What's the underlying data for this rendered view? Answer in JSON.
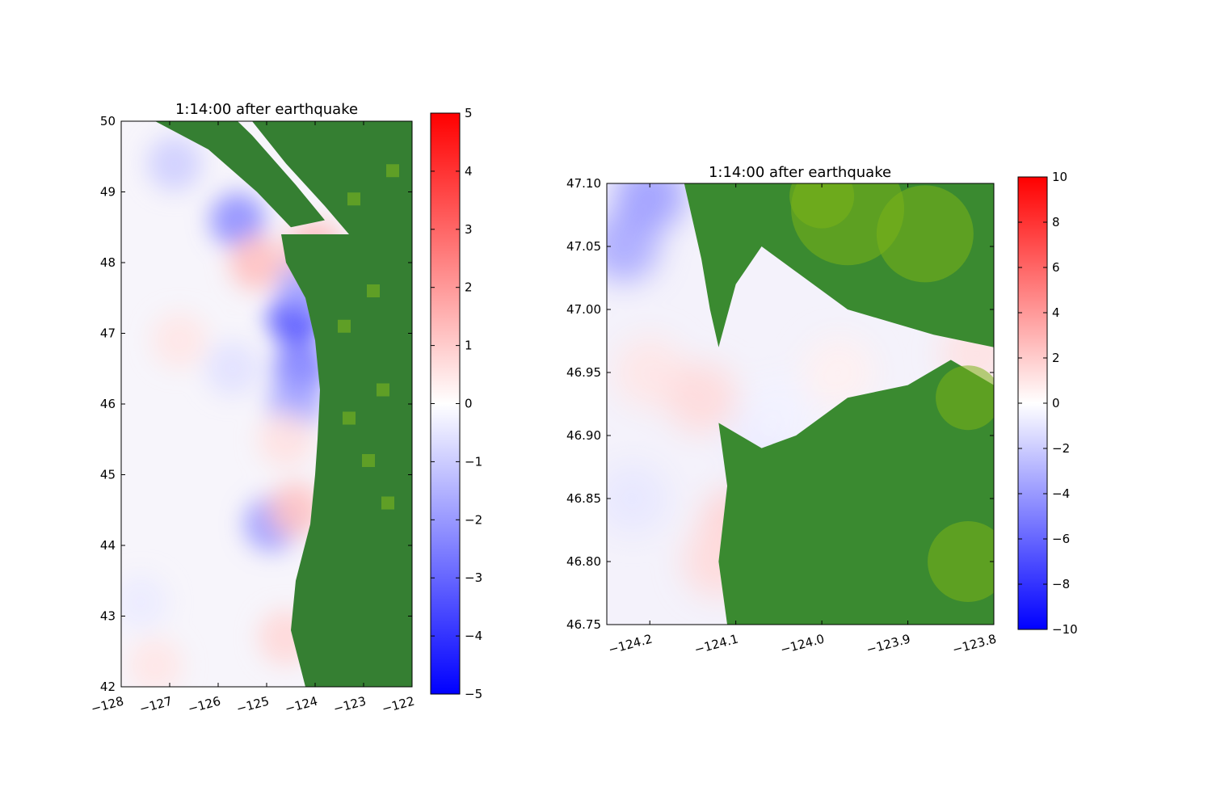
{
  "chart_data": [
    {
      "type": "heatmap",
      "title": "1:14:00 after earthquake",
      "xlim": [
        -128,
        -122
      ],
      "ylim": [
        42,
        50
      ],
      "x_ticks": [
        -128,
        -127,
        -126,
        -125,
        -124,
        -123,
        -122
      ],
      "x_tick_labels": [
        "−128",
        "−127",
        "−126",
        "−125",
        "−124",
        "−123",
        "−122"
      ],
      "y_ticks": [
        42,
        43,
        44,
        45,
        46,
        47,
        48,
        49,
        50
      ],
      "y_tick_labels": [
        "42",
        "43",
        "44",
        "45",
        "46",
        "47",
        "48",
        "49",
        "50"
      ],
      "colorbar": {
        "range": [
          -5,
          5
        ],
        "ticks": [
          -5,
          -4,
          -3,
          -2,
          -1,
          0,
          1,
          2,
          3,
          4,
          5
        ],
        "tick_labels": [
          "−5",
          "−4",
          "−3",
          "−2",
          "−1",
          "0",
          "1",
          "2",
          "3",
          "4",
          "5"
        ],
        "colormap": [
          "#0000ff",
          "#ffffff",
          "#ff0000"
        ]
      },
      "land_color": "#357f32",
      "land_highland_color": "#6aa823",
      "coastline": [
        [
          -125.3,
          50
        ],
        [
          -124.6,
          49.4
        ],
        [
          -123.8,
          48.8
        ],
        [
          -123.3,
          48.4
        ],
        [
          -124.7,
          48.4
        ],
        [
          -124.6,
          48.0
        ],
        [
          -124.2,
          47.5
        ],
        [
          -124.0,
          46.9
        ],
        [
          -123.9,
          46.2
        ],
        [
          -123.95,
          45.5
        ],
        [
          -124.0,
          45.0
        ],
        [
          -124.1,
          44.3
        ],
        [
          -124.4,
          43.5
        ],
        [
          -124.5,
          42.8
        ],
        [
          -124.2,
          42.0
        ]
      ],
      "anomalies": [
        {
          "lon": -125.6,
          "lat": 48.6,
          "value": -2.3
        },
        {
          "lon": -124.4,
          "lat": 47.2,
          "value": -3.5
        },
        {
          "lon": -124.3,
          "lat": 46.5,
          "value": -2.6
        },
        {
          "lon": -124.2,
          "lat": 47.7,
          "value": -1.8
        },
        {
          "lon": -124.4,
          "lat": 46.0,
          "value": -1.8
        },
        {
          "lon": -124.9,
          "lat": 44.3,
          "value": -2.0
        },
        {
          "lon": -125.7,
          "lat": 46.5,
          "value": -0.6
        },
        {
          "lon": -126.9,
          "lat": 49.4,
          "value": -1.0
        },
        {
          "lon": -125.2,
          "lat": 48.0,
          "value": 1.3
        },
        {
          "lon": -124.0,
          "lat": 48.2,
          "value": 1.4
        },
        {
          "lon": -126.8,
          "lat": 46.9,
          "value": 0.5
        },
        {
          "lon": -124.6,
          "lat": 45.5,
          "value": 0.6
        },
        {
          "lon": -124.4,
          "lat": 44.5,
          "value": 1.2
        },
        {
          "lon": -124.6,
          "lat": 42.7,
          "value": 0.8
        },
        {
          "lon": -127.3,
          "lat": 42.3,
          "value": 0.5
        },
        {
          "lon": -127.6,
          "lat": 43.2,
          "value": -0.4
        }
      ]
    },
    {
      "type": "heatmap",
      "title": "1:14:00 after earthquake",
      "xlim": [
        -124.25,
        -123.8
      ],
      "ylim": [
        46.75,
        47.1
      ],
      "x_ticks": [
        -124.2,
        -124.1,
        -124.0,
        -123.9,
        -123.8
      ],
      "x_tick_labels": [
        "−124.2",
        "−124.1",
        "−124.0",
        "−123.9",
        "−123.8"
      ],
      "y_ticks": [
        46.75,
        46.8,
        46.85,
        46.9,
        46.95,
        47.0,
        47.05,
        47.1
      ],
      "y_tick_labels": [
        "46.75",
        "46.80",
        "46.85",
        "46.90",
        "46.95",
        "47.00",
        "47.05",
        "47.10"
      ],
      "colorbar": {
        "range": [
          -10,
          10
        ],
        "ticks": [
          -10,
          -8,
          -6,
          -4,
          -2,
          0,
          2,
          4,
          6,
          8,
          10
        ],
        "tick_labels": [
          "−10",
          "−8",
          "−6",
          "−4",
          "−2",
          "0",
          "2",
          "4",
          "6",
          "8",
          "10"
        ],
        "colormap": [
          "#0000ff",
          "#ffffff",
          "#ff0000"
        ]
      },
      "land_color": "#3a8a30",
      "land_highland_color": "#7ab317",
      "coastline_north": [
        [
          -124.16,
          47.1
        ],
        [
          -124.15,
          47.07
        ],
        [
          -124.14,
          47.04
        ],
        [
          -124.13,
          47.0
        ],
        [
          -124.12,
          46.97
        ],
        [
          -124.1,
          47.02
        ],
        [
          -124.07,
          47.05
        ],
        [
          -124.03,
          47.03
        ],
        [
          -123.97,
          47.0
        ],
        [
          -123.92,
          46.99
        ],
        [
          -123.87,
          46.98
        ],
        [
          -123.8,
          46.97
        ]
      ],
      "coastline_south": [
        [
          -124.11,
          46.75
        ],
        [
          -124.12,
          46.8
        ],
        [
          -124.11,
          46.86
        ],
        [
          -124.12,
          46.91
        ],
        [
          -124.07,
          46.89
        ],
        [
          -124.03,
          46.9
        ],
        [
          -123.97,
          46.93
        ],
        [
          -123.9,
          46.94
        ],
        [
          -123.85,
          46.96
        ],
        [
          -123.8,
          46.94
        ]
      ],
      "anomalies": [
        {
          "lon": -124.23,
          "lat": 47.05,
          "value": -3.5
        },
        {
          "lon": -124.2,
          "lat": 47.09,
          "value": -4.0
        },
        {
          "lon": -124.2,
          "lat": 46.95,
          "value": 1.0
        },
        {
          "lon": -124.14,
          "lat": 46.93,
          "value": 1.5
        },
        {
          "lon": -124.1,
          "lat": 46.83,
          "value": 1.8
        },
        {
          "lon": -124.12,
          "lat": 46.8,
          "value": 1.5
        },
        {
          "lon": -124.05,
          "lat": 46.86,
          "value": -1.2
        },
        {
          "lon": -124.07,
          "lat": 46.9,
          "value": -0.8
        },
        {
          "lon": -123.98,
          "lat": 46.95,
          "value": 0.6
        },
        {
          "lon": -123.82,
          "lat": 46.965,
          "value": 1.2
        },
        {
          "lon": -124.22,
          "lat": 46.85,
          "value": -1.0
        },
        {
          "lon": -124.05,
          "lat": 46.92,
          "value": -0.5
        }
      ]
    }
  ]
}
